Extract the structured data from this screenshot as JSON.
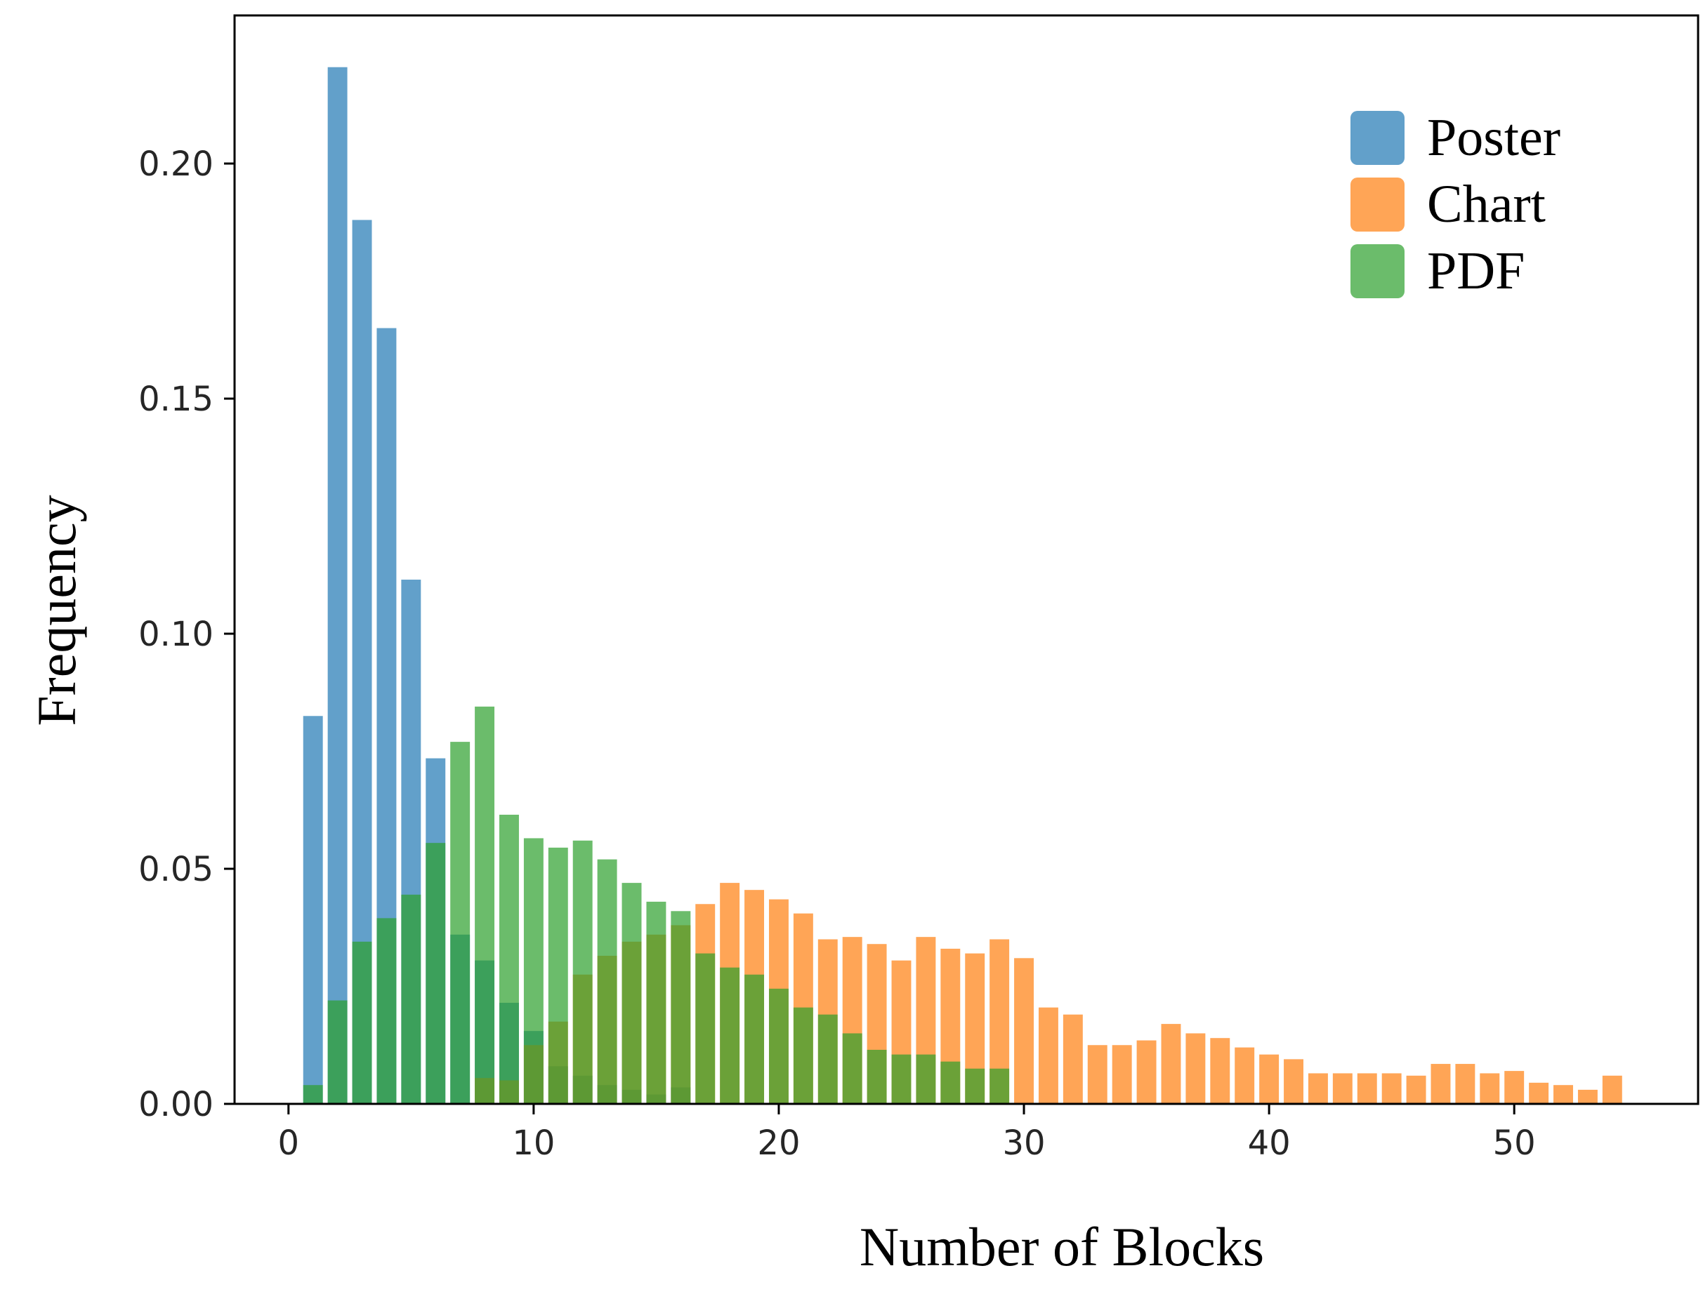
{
  "chart_data": {
    "type": "bar",
    "title": "",
    "xlabel": "Number of Blocks",
    "ylabel": "Frequency",
    "xlim": [
      -2.2,
      57.5
    ],
    "ylim": [
      0,
      0.2315
    ],
    "xticks": [
      0,
      10,
      20,
      30,
      40,
      50
    ],
    "xtick_labels": [
      "0",
      "10",
      "20",
      "30",
      "40",
      "50"
    ],
    "yticks": [
      0,
      0.05,
      0.1,
      0.15,
      0.2
    ],
    "ytick_labels": [
      "0.00",
      "0.05",
      "0.10",
      "0.15",
      "0.20"
    ],
    "grid": false,
    "legend_position": "top-right",
    "bar_width": 0.8,
    "series": [
      {
        "name": "Poster",
        "color": "#1f77b4",
        "opacity": 0.7,
        "x": [
          1,
          2,
          3,
          4,
          5,
          6,
          7,
          8,
          9,
          10,
          11,
          12,
          13,
          14,
          15,
          16
        ],
        "values": [
          0.0825,
          0.2205,
          0.188,
          0.165,
          0.1115,
          0.0735,
          0.036,
          0.0305,
          0.0215,
          0.0155,
          0.008,
          0.006,
          0.004,
          0.003,
          0.002,
          0.0035
        ]
      },
      {
        "name": "Chart",
        "color": "#ff7f0e",
        "opacity": 0.7,
        "x": [
          1,
          2,
          3,
          4,
          5,
          6,
          7,
          8,
          9,
          10,
          11,
          12,
          13,
          14,
          15,
          16,
          17,
          18,
          19,
          20,
          21,
          22,
          23,
          24,
          25,
          26,
          27,
          28,
          29,
          30,
          31,
          32,
          33,
          34,
          35,
          36,
          37,
          38,
          39,
          40,
          41,
          42,
          43,
          44,
          45,
          46,
          47,
          48,
          49,
          50,
          51,
          52,
          53,
          54
        ],
        "values": [
          0.0,
          0.0,
          0.0,
          0.0,
          0.0,
          0.0,
          0.0,
          0.0055,
          0.005,
          0.0125,
          0.0175,
          0.0275,
          0.0315,
          0.0345,
          0.036,
          0.038,
          0.0425,
          0.047,
          0.0455,
          0.0435,
          0.0405,
          0.035,
          0.0355,
          0.034,
          0.0305,
          0.0355,
          0.033,
          0.032,
          0.035,
          0.031,
          0.0205,
          0.019,
          0.0125,
          0.0125,
          0.0135,
          0.017,
          0.015,
          0.014,
          0.012,
          0.0105,
          0.0095,
          0.0065,
          0.0065,
          0.0065,
          0.0065,
          0.006,
          0.0085,
          0.0085,
          0.0065,
          0.007,
          0.0045,
          0.004,
          0.003,
          0.006
        ]
      },
      {
        "name": "PDF",
        "color": "#2ca02c",
        "opacity": 0.7,
        "x": [
          1,
          2,
          3,
          4,
          5,
          6,
          7,
          8,
          9,
          10,
          11,
          12,
          13,
          14,
          15,
          16,
          17,
          18,
          19,
          20,
          21,
          22,
          23,
          24,
          25,
          26,
          27,
          28,
          29
        ],
        "values": [
          0.004,
          0.022,
          0.0345,
          0.0395,
          0.0445,
          0.0555,
          0.077,
          0.0845,
          0.0615,
          0.0565,
          0.0545,
          0.056,
          0.052,
          0.047,
          0.043,
          0.041,
          0.032,
          0.029,
          0.0275,
          0.0245,
          0.0205,
          0.019,
          0.015,
          0.0115,
          0.0105,
          0.0105,
          0.009,
          0.0075,
          0.0075
        ]
      }
    ]
  }
}
